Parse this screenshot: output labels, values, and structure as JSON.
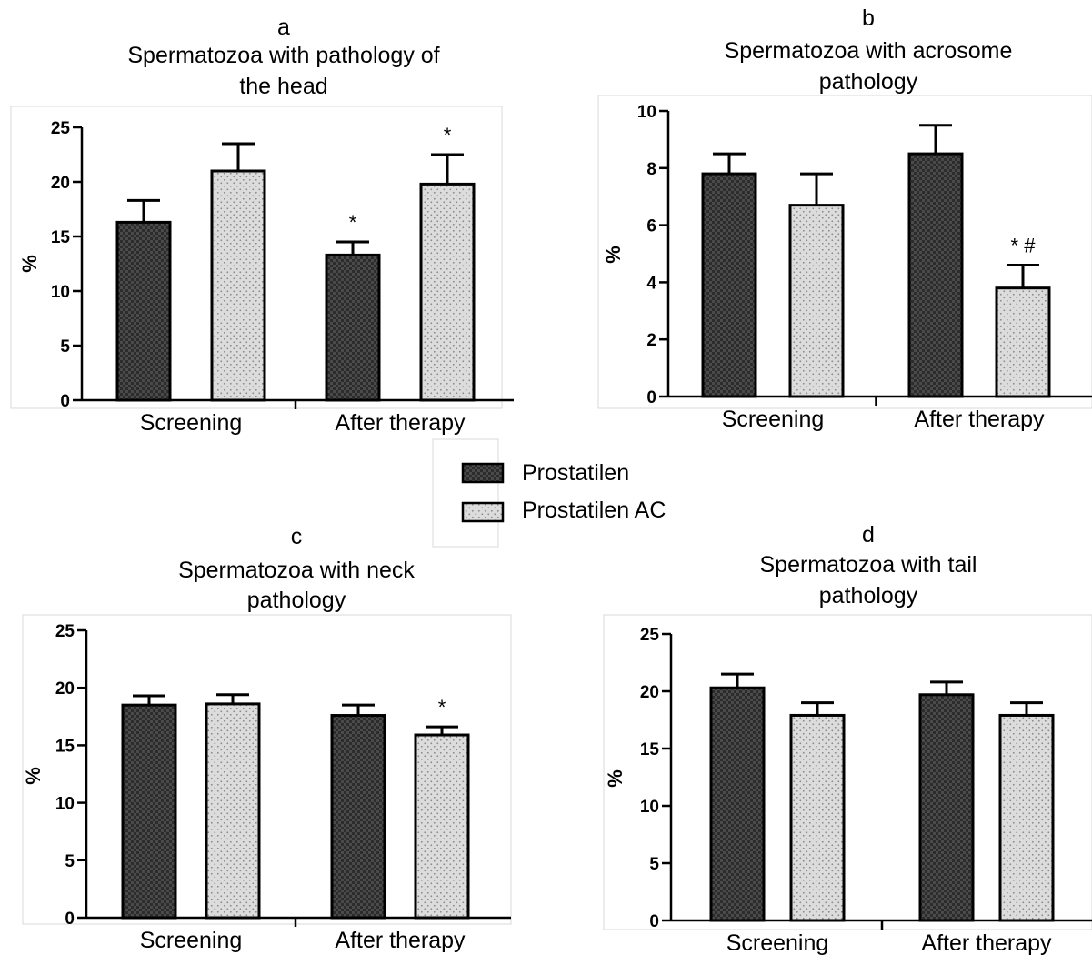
{
  "legend": {
    "entries": [
      "Prostatilen",
      "Prostatilen AC"
    ]
  },
  "colors": {
    "prostatilen": "#4a4a4a",
    "prostatilen_ac": "#d9d9d9",
    "axis": "#000000"
  },
  "chart_data": [
    {
      "type": "bar",
      "panel": "a",
      "title_lines": [
        "Spermatozoa with pathology of",
        "the head"
      ],
      "ylabel": "%",
      "categories": [
        "Screening",
        "After therapy"
      ],
      "ylim": [
        0,
        25
      ],
      "yticks": [
        0,
        5,
        10,
        15,
        20,
        25
      ],
      "series": [
        {
          "name": "Prostatilen",
          "values": [
            16.3,
            13.3
          ],
          "errors": [
            2.0,
            1.2
          ]
        },
        {
          "name": "Prostatilen AC",
          "values": [
            21.0,
            19.8
          ],
          "errors": [
            2.5,
            2.7
          ]
        }
      ],
      "annotations": [
        {
          "category": 1,
          "series": 0,
          "text": "*"
        },
        {
          "category": 1,
          "series": 1,
          "text": "*"
        }
      ]
    },
    {
      "type": "bar",
      "panel": "b",
      "title_lines": [
        "Spermatozoa with acrosome",
        "pathology"
      ],
      "ylabel": "%",
      "categories": [
        "Screening",
        "After therapy"
      ],
      "ylim": [
        0,
        10
      ],
      "yticks": [
        0,
        2,
        4,
        6,
        8,
        10
      ],
      "series": [
        {
          "name": "Prostatilen",
          "values": [
            7.8,
            8.5
          ],
          "errors": [
            0.7,
            1.0
          ]
        },
        {
          "name": "Prostatilen AC",
          "values": [
            6.7,
            3.8
          ],
          "errors": [
            1.1,
            0.8
          ]
        }
      ],
      "annotations": [
        {
          "category": 1,
          "series": 1,
          "text": "* #"
        }
      ]
    },
    {
      "type": "bar",
      "panel": "c",
      "title_lines": [
        "Spermatozoa with neck",
        "pathology"
      ],
      "ylabel": "%",
      "categories": [
        "Screening",
        "After therapy"
      ],
      "ylim": [
        0,
        25
      ],
      "yticks": [
        0,
        5,
        10,
        15,
        20,
        25
      ],
      "series": [
        {
          "name": "Prostatilen",
          "values": [
            18.5,
            17.6
          ],
          "errors": [
            0.8,
            0.9
          ]
        },
        {
          "name": "Prostatilen AC",
          "values": [
            18.6,
            15.9
          ],
          "errors": [
            0.8,
            0.7
          ]
        }
      ],
      "annotations": [
        {
          "category": 1,
          "series": 1,
          "text": "*"
        }
      ]
    },
    {
      "type": "bar",
      "panel": "d",
      "title_lines": [
        "Spermatozoa with tail",
        "pathology"
      ],
      "ylabel": "%",
      "categories": [
        "Screening",
        "After therapy"
      ],
      "ylim": [
        0,
        25
      ],
      "yticks": [
        0,
        5,
        10,
        15,
        20,
        25
      ],
      "series": [
        {
          "name": "Prostatilen",
          "values": [
            20.3,
            19.7
          ],
          "errors": [
            1.2,
            1.1
          ]
        },
        {
          "name": "Prostatilen AC",
          "values": [
            17.9,
            17.9
          ],
          "errors": [
            1.1,
            1.1
          ]
        }
      ],
      "annotations": []
    }
  ]
}
